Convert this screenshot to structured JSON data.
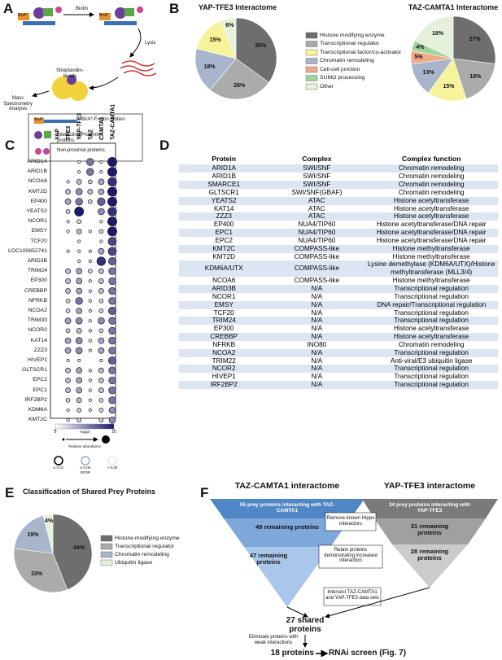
{
  "panel_labels": [
    "A",
    "B",
    "C",
    "D",
    "E",
    "F"
  ],
  "panel_a": {
    "biotin": "Biotin",
    "lysis": "Lysis",
    "beads": "Streptavidin-beads",
    "ms": "Mass Spectrometry Analysis",
    "bira": "BirA*",
    "legend": [
      "BirA*-Fusion protein",
      "Interacting/Proximity proteins",
      "Non-proximal proteins"
    ]
  },
  "legend_b": [
    {
      "name": "Histone modifying enzyme",
      "color": "#6e6e6e"
    },
    {
      "name": "Transcriptional regulator",
      "color": "#ababab"
    },
    {
      "name": "Transcriptional factor/co-activator",
      "color": "#f6f39b"
    },
    {
      "name": "Chromatin remodeling",
      "color": "#a8b5cb"
    },
    {
      "name": "Cell-cell junction",
      "color": "#f1a98b"
    },
    {
      "name": "SUMO processing",
      "color": "#9ed699"
    },
    {
      "name": "Other",
      "color": "#e6f1dc"
    }
  ],
  "legend_e": [
    {
      "name": "Histone modifying enzyme",
      "color": "#6e6e6e"
    },
    {
      "name": "Transcriptional regulator",
      "color": "#ababab"
    },
    {
      "name": "Chromatin remodeling",
      "color": "#a8b5cb"
    },
    {
      "name": "Ubiquitin ligase",
      "color": "#e6f1dc"
    }
  ],
  "chart_data": [
    {
      "type": "pie",
      "title": "YAP-TFE3 Interactome",
      "values": [
        35,
        26,
        18,
        15,
        6
      ],
      "value_labels": [
        "35%",
        "26%",
        "18%",
        "15%",
        "6%"
      ],
      "colors": [
        "#6e6e6e",
        "#ababab",
        "#a8b5cb",
        "#f6f39b",
        "#e6f1dc"
      ]
    },
    {
      "type": "pie",
      "title": "TAZ-CAMTA1 Interactome",
      "values": [
        27,
        18,
        15,
        13,
        5,
        4,
        18
      ],
      "value_labels": [
        "27%",
        "18%",
        "15%",
        "13%",
        "5%",
        "4%",
        "18%"
      ],
      "colors": [
        "#6e6e6e",
        "#ababab",
        "#f6f39b",
        "#a8b5cb",
        "#f1a98b",
        "#9ed699",
        "#e6f1dc"
      ]
    },
    {
      "type": "pie",
      "title": "Classification of Shared Prey Proteins",
      "values": [
        44,
        33,
        19,
        4
      ],
      "value_labels": [
        "44%",
        "33%",
        "19%",
        "4%"
      ],
      "colors": [
        "#6e6e6e",
        "#ababab",
        "#a8b5cb",
        "#e6f1dc"
      ]
    }
  ],
  "dot_plot": {
    "columns": [
      "YAP",
      "TFE3",
      "YAP-TFE3",
      "TAZ",
      "CAMTA1",
      "TAZ-CAMTA1"
    ],
    "rows": [
      "ARID1A",
      "ARID1B",
      "NCOA6",
      "KMT2D",
      "EP400",
      "YEATS2",
      "NCOR1",
      "EMSY",
      "TCF20",
      "LOC100652741",
      "ARID3B",
      "TRIM24",
      "EP300",
      "CREBBP",
      "NFRKB",
      "NCOA2",
      "TRIM33",
      "NCOR2",
      "KAT14",
      "ZZZ3",
      "HIVEP1",
      "GLTSCR1",
      "EPC2",
      "EPC1",
      "IRF2BP2",
      "KDM6A",
      "KMT2C"
    ],
    "values": [
      [
        0,
        0,
        1,
        6,
        1,
        10
      ],
      [
        0,
        0,
        1,
        6,
        1,
        10
      ],
      [
        0,
        1,
        3,
        2,
        4,
        9
      ],
      [
        0,
        3,
        5,
        3,
        4,
        10
      ],
      [
        0,
        4,
        6,
        2,
        7,
        10
      ],
      [
        0,
        2,
        10,
        0,
        5,
        9
      ],
      [
        0,
        1,
        2,
        0,
        1,
        10
      ],
      [
        0,
        1,
        3,
        1,
        2,
        10
      ],
      [
        0,
        0,
        1,
        0,
        1,
        8
      ],
      [
        0,
        1,
        1,
        1,
        4,
        8
      ],
      [
        0,
        0,
        1,
        1,
        9,
        7
      ],
      [
        0,
        3,
        4,
        2,
        3,
        6
      ],
      [
        0,
        3,
        4,
        1,
        3,
        6
      ],
      [
        0,
        3,
        4,
        1,
        3,
        6
      ],
      [
        0,
        2,
        6,
        1,
        2,
        6
      ],
      [
        0,
        2,
        4,
        1,
        2,
        7
      ],
      [
        0,
        4,
        5,
        1,
        5,
        6
      ],
      [
        0,
        2,
        3,
        1,
        2,
        6
      ],
      [
        0,
        4,
        5,
        1,
        4,
        6
      ],
      [
        0,
        4,
        5,
        1,
        4,
        6
      ],
      [
        0,
        1,
        1,
        0,
        1,
        7
      ],
      [
        0,
        3,
        4,
        1,
        3,
        6
      ],
      [
        0,
        3,
        4,
        1,
        3,
        6
      ],
      [
        0,
        3,
        4,
        1,
        3,
        6
      ],
      [
        0,
        2,
        3,
        1,
        2,
        6
      ],
      [
        0,
        1,
        2,
        1,
        2,
        5
      ],
      [
        0,
        1,
        2,
        0,
        2,
        5
      ]
    ],
    "colorbar": {
      "lim": [
        0,
        10
      ],
      "ticks": [
        0,
        10
      ],
      "label": "-log(p)"
    },
    "abundance_label": "Relative abundance",
    "bfdr_label": "BFDR",
    "bfdr_levels": [
      "≤ 0.01",
      "≤ 0.05",
      "> 0.05"
    ]
  },
  "table": {
    "header": [
      "Protein",
      "Complex",
      "Complex function"
    ],
    "rows": [
      [
        "ARID1A",
        "SWI/SNF",
        "Chromatin remodeling"
      ],
      [
        "ARID1B",
        "SWI/SNF",
        "Chromatin remodeling"
      ],
      [
        "SMARCE1",
        "SWI/SNF",
        "Chromatin remodeling"
      ],
      [
        "GLTSCR1",
        "SWI/SNF(GBAF)",
        "Chromatin remodeling"
      ],
      [
        "YEATS2",
        "ATAC",
        "Histone acetyltransferase"
      ],
      [
        "KAT14",
        "ATAC",
        "Histone acetyltransferase"
      ],
      [
        "ZZZ3",
        "ATAC",
        "Histone acetyltransferase"
      ],
      [
        "EP400",
        "NUA4/TIP60",
        "Histone acetyltransferase/DNA repair"
      ],
      [
        "EPC1",
        "NUA4/TIP60",
        "Histone acetyltransferase/DNA repair"
      ],
      [
        "EPC2",
        "NUA4/TIP60",
        "Histone acetyltransferase/DNA repair"
      ],
      [
        "KMT2C",
        "COMPASS-like",
        "Histone methyltransferase"
      ],
      [
        "KMT2D",
        "COMPASS-like",
        "Histone methyltransferase"
      ],
      [
        "KDM6A/UTX",
        "COMPASS-like",
        "Lysine demethylase (KDM6A/UTX)/Histone methyltransferase (MLL3/4)"
      ],
      [
        "NCOA6",
        "COMPASS-like",
        "Histone methyltransferase"
      ],
      [
        "ARID3B",
        "N/A",
        "Transcriptional regulation"
      ],
      [
        "NCOR1",
        "N/A",
        "Transcriptional regulation"
      ],
      [
        "EMSY",
        "N/A",
        "DNA repair/Transcriptional regulation"
      ],
      [
        "TCF20",
        "N/A",
        "Transcriptional regulation"
      ],
      [
        "TRIM24",
        "N/A",
        "Transcriptional regulation"
      ],
      [
        "EP300",
        "N/A",
        "Histone acetyltransferase"
      ],
      [
        "CREBBP",
        "N/A",
        "Histone acetyltransferase"
      ],
      [
        "NFRKB",
        "INO80",
        "Chromatin remodeling"
      ],
      [
        "NCOA2",
        "N/A",
        "Transcriptional regulation"
      ],
      [
        "TRIM22",
        "N/A",
        "Anti-viral/E3 ubiquitin ligase"
      ],
      [
        "NCOR2",
        "N/A",
        "Transcriptional regulation"
      ],
      [
        "HIVEP1",
        "N/A",
        "Transcriptional regulation"
      ],
      [
        "IRF2BP2",
        "N/A",
        "Transcriptional regulation"
      ]
    ]
  },
  "flow": {
    "left_title": "TAZ-CAMTA1 interactome",
    "right_title": "YAP-TFE3 interactome",
    "left_steps": [
      "55 prey proteins interacting with TAZ-CAMTA1",
      "49 remaining proteins",
      "47 remaining proteins"
    ],
    "right_steps": [
      "34 prey proteins interacting with YAP-TFE3",
      "31 remaining proteins",
      "28 remaining proteins"
    ],
    "middle_steps": [
      "Remove known Hippo interactors",
      "Retain proteins demonstrating increased interaction",
      "Intersect TAZ-CAMTA1 and YAP-TFE3 data sets"
    ],
    "shared": "27 shared proteins",
    "filter": "Eliminate proteins with weak interactions",
    "result": "18 proteins",
    "result_target": "RNAi screen (Fig. 7)"
  }
}
